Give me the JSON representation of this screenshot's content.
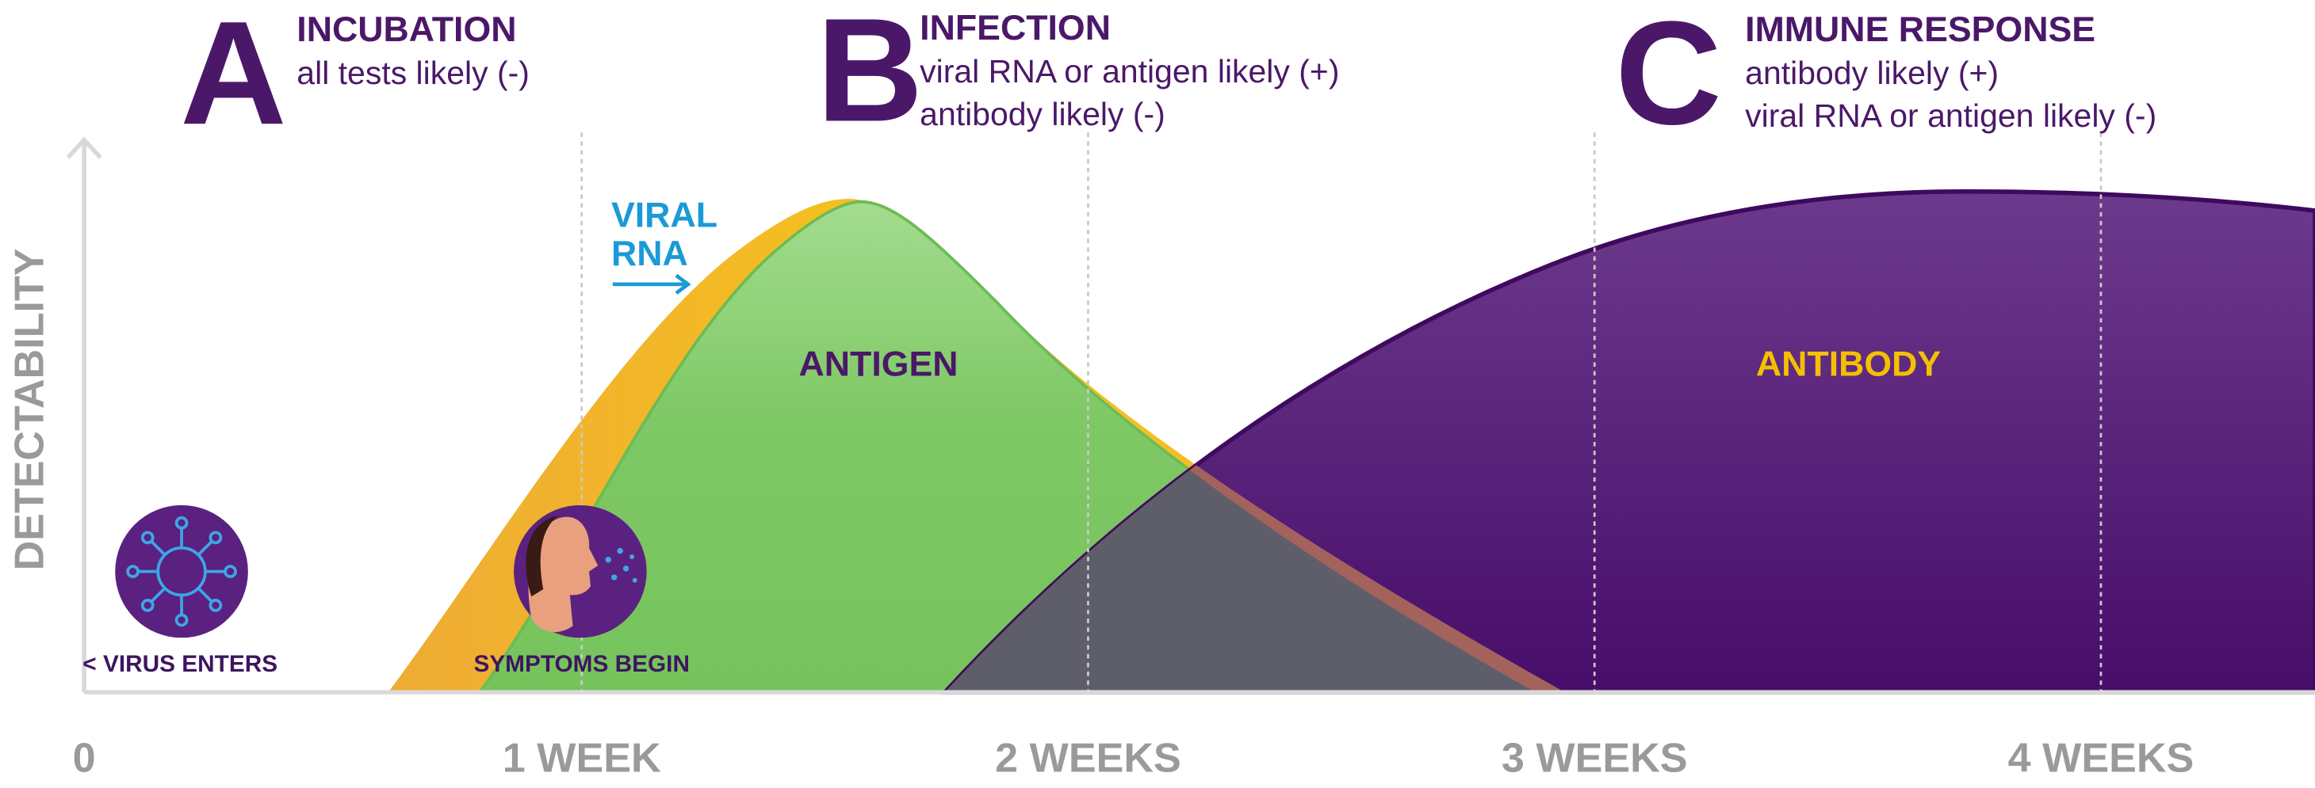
{
  "phases": [
    {
      "letter": "A",
      "title": "INCUBATION",
      "lines": [
        "all tests likely (-)"
      ]
    },
    {
      "letter": "B",
      "title": "INFECTION",
      "lines": [
        "viral RNA or antigen likely (+)",
        "antibody likely (-)"
      ]
    },
    {
      "letter": "C",
      "title": "IMMUNE RESPONSE",
      "lines": [
        "antibody likely (+)",
        "viral RNA or antigen likely (-)"
      ]
    }
  ],
  "y_axis_label": "DETECTABILITY",
  "x_axis_labels": [
    "0",
    "1 WEEK",
    "2 WEEKS",
    "3 WEEKS",
    "4 WEEKS"
  ],
  "curve_labels": {
    "viral_rna": [
      "VIRAL",
      "RNA"
    ],
    "antigen": "ANTIGEN",
    "antibody": "ANTIBODY"
  },
  "events": [
    "< VIRUS ENTERS",
    "SYMPTOMS BEGIN"
  ]
}
